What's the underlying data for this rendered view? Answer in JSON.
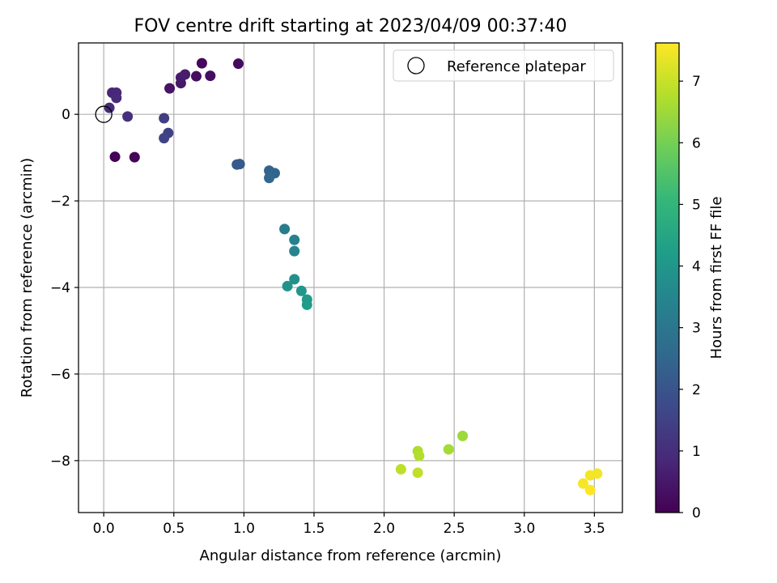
{
  "chart_data": {
    "type": "scatter",
    "title": "FOV centre drift starting at 2023/04/09 00:37:40",
    "xlabel": "Angular distance from reference (arcmin)",
    "ylabel": "Rotation from reference (arcmin)",
    "xlim": [
      -0.18,
      3.7
    ],
    "ylim": [
      -9.2,
      1.65
    ],
    "xticks": [
      0.0,
      0.5,
      1.0,
      1.5,
      2.0,
      2.5,
      3.0,
      3.5
    ],
    "xtick_labels": [
      "0.0",
      "0.5",
      "1.0",
      "1.5",
      "2.0",
      "2.5",
      "3.0",
      "3.5"
    ],
    "yticks": [
      0,
      -2,
      -4,
      -6,
      -8
    ],
    "ytick_labels": [
      "0",
      "−2",
      "−4",
      "−6",
      "−8"
    ],
    "grid": true,
    "legend": {
      "position": "top-right",
      "entries": [
        "Reference platepar"
      ]
    },
    "reference_point": {
      "x": 0.0,
      "y": 0.0
    },
    "colorbar": {
      "label": "Hours from first FF file",
      "colormap": "viridis",
      "range": [
        0,
        7.62
      ],
      "ticks": [
        0,
        1,
        2,
        3,
        4,
        5,
        6,
        7
      ],
      "tick_labels": [
        "0",
        "1",
        "2",
        "3",
        "4",
        "5",
        "6",
        "7"
      ],
      "stops": [
        "#440154",
        "#482878",
        "#3e4989",
        "#31688e",
        "#26828e",
        "#1f9e89",
        "#35b779",
        "#6ece58",
        "#b5de2b",
        "#fde725"
      ]
    },
    "points": [
      {
        "x": 0.08,
        "y": -0.98,
        "t": 0.05
      },
      {
        "x": 0.22,
        "y": -0.99,
        "t": 0.1
      },
      {
        "x": 0.7,
        "y": 1.18,
        "t": 0.15
      },
      {
        "x": 0.96,
        "y": 1.17,
        "t": 0.2
      },
      {
        "x": 0.66,
        "y": 0.88,
        "t": 0.25
      },
      {
        "x": 0.76,
        "y": 0.89,
        "t": 0.3
      },
      {
        "x": 0.47,
        "y": 0.6,
        "t": 0.4
      },
      {
        "x": 0.55,
        "y": 0.72,
        "t": 0.5
      },
      {
        "x": 0.55,
        "y": 0.85,
        "t": 0.55
      },
      {
        "x": 0.58,
        "y": 0.92,
        "t": 0.6
      },
      {
        "x": 0.06,
        "y": 0.5,
        "t": 0.8
      },
      {
        "x": 0.09,
        "y": 0.5,
        "t": 0.85
      },
      {
        "x": 0.09,
        "y": 0.38,
        "t": 0.9
      },
      {
        "x": 0.04,
        "y": 0.15,
        "t": 0.95
      },
      {
        "x": 0.17,
        "y": -0.05,
        "t": 1.05
      },
      {
        "x": 0.43,
        "y": -0.09,
        "t": 1.4
      },
      {
        "x": 0.46,
        "y": -0.43,
        "t": 1.5
      },
      {
        "x": 0.43,
        "y": -0.55,
        "t": 1.55
      },
      {
        "x": 0.95,
        "y": -1.16,
        "t": 2.1
      },
      {
        "x": 0.97,
        "y": -1.15,
        "t": 2.15
      },
      {
        "x": 1.18,
        "y": -1.3,
        "t": 2.4
      },
      {
        "x": 1.22,
        "y": -1.36,
        "t": 2.45
      },
      {
        "x": 1.18,
        "y": -1.47,
        "t": 2.5
      },
      {
        "x": 1.29,
        "y": -2.65,
        "t": 3.2
      },
      {
        "x": 1.36,
        "y": -2.9,
        "t": 3.35
      },
      {
        "x": 1.36,
        "y": -3.16,
        "t": 3.45
      },
      {
        "x": 1.36,
        "y": -3.81,
        "t": 3.8
      },
      {
        "x": 1.31,
        "y": -3.97,
        "t": 3.9
      },
      {
        "x": 1.41,
        "y": -4.08,
        "t": 4.0
      },
      {
        "x": 1.45,
        "y": -4.28,
        "t": 4.1
      },
      {
        "x": 1.45,
        "y": -4.4,
        "t": 4.2
      },
      {
        "x": 2.56,
        "y": -7.43,
        "t": 6.5
      },
      {
        "x": 2.46,
        "y": -7.74,
        "t": 6.6
      },
      {
        "x": 2.24,
        "y": -7.78,
        "t": 6.7
      },
      {
        "x": 2.25,
        "y": -7.89,
        "t": 6.75
      },
      {
        "x": 2.12,
        "y": -8.2,
        "t": 6.85
      },
      {
        "x": 2.24,
        "y": -8.28,
        "t": 6.9
      },
      {
        "x": 3.52,
        "y": -8.3,
        "t": 7.5
      },
      {
        "x": 3.47,
        "y": -8.34,
        "t": 7.52
      },
      {
        "x": 3.42,
        "y": -8.53,
        "t": 7.55
      },
      {
        "x": 3.47,
        "y": -8.68,
        "t": 7.6
      }
    ]
  }
}
